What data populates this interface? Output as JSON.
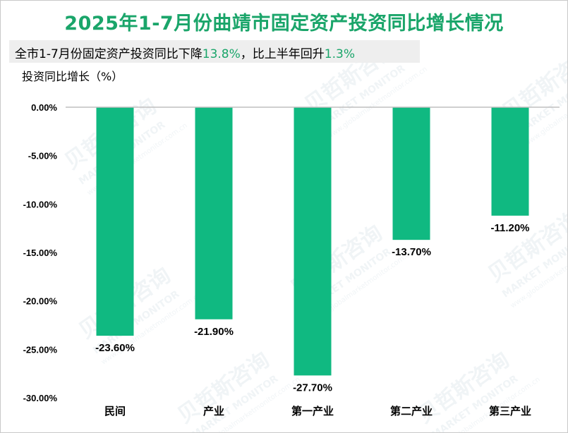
{
  "title": "2025年1-7月份曲靖市固定资产投资同比增长情况",
  "subtitle": {
    "prefix": "全市1-7月份固定资产投资同比下降",
    "value1": "13.8%",
    "middle": "，比上半年回升",
    "value2": "1.3%"
  },
  "colors": {
    "title": "#1aa56a",
    "accent": "#1aa56a",
    "bar": "#10b981",
    "axis_line": "#bfbfbf",
    "text": "#000000"
  },
  "watermark": {
    "brand": "贝哲斯咨询",
    "tagline": "MARKET MONITOR",
    "url": "www.globalmarketmonitor.com.cn"
  },
  "chart_data": {
    "type": "bar",
    "title": "2025年1-7月份曲靖市固定资产投资同比增长情况",
    "ylabel": "投资同比增长（%）",
    "xlabel": "",
    "categories": [
      "民间",
      "产业",
      "第一产业",
      "第二产业",
      "第三产业"
    ],
    "values": [
      -23.6,
      -21.9,
      -27.7,
      -13.7,
      -11.2
    ],
    "value_labels": [
      "-23.60%",
      "-21.90%",
      "-27.70%",
      "-13.70%",
      "-11.20%"
    ],
    "yticks": [
      "0.00%",
      "-5.00%",
      "-10.00%",
      "-15.00%",
      "-20.00%",
      "-25.00%",
      "-30.00%"
    ],
    "ylim": [
      -30,
      0
    ],
    "grid": false,
    "legend": "none"
  }
}
